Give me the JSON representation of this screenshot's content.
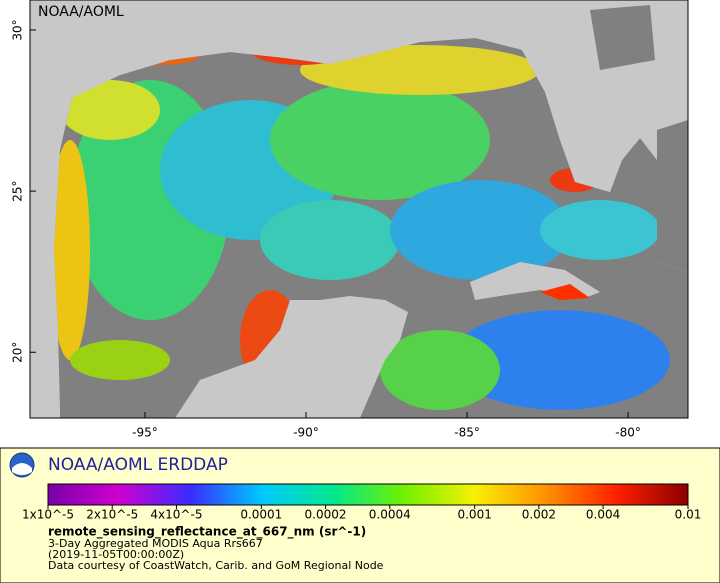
{
  "map": {
    "credit": "NOAA/AOML",
    "xlim": [
      -98.57,
      -78.14
    ],
    "ylim": [
      17.96,
      30.93
    ],
    "xticks": [
      {
        "value": -95,
        "label": "-95°"
      },
      {
        "value": -90,
        "label": "-90°"
      },
      {
        "value": -85,
        "label": "-85°"
      },
      {
        "value": -80,
        "label": "-80°"
      }
    ],
    "yticks": [
      {
        "value": 20,
        "label": "20°"
      },
      {
        "value": 25,
        "label": "25°"
      },
      {
        "value": 30,
        "label": "30°"
      }
    ]
  },
  "legend": {
    "title": "NOAA/AOML ERDDAP",
    "variable": "remote_sensing_reflectance_at_667_nm (sr^-1)",
    "lines": [
      "3-Day Aggregated MODIS Aqua Rrs667",
      "(2019-11-05T00:00:00Z)",
      "Data courtesy of CoastWatch, Carib. and GoM Regional Node"
    ],
    "colorbar": {
      "scale": "log",
      "lim": [
        1e-05,
        0.01
      ],
      "ticks": [
        {
          "value": 1e-05,
          "label": "1x10^-5"
        },
        {
          "value": 2e-05,
          "label": "2x10^-5"
        },
        {
          "value": 4e-05,
          "label": "4x10^-5"
        },
        0.0001,
        0.0002,
        0.0004,
        0.001,
        0.002,
        0.004,
        0.01
      ],
      "colors": [
        "#7a00a8",
        "#d000d0",
        "#3a2bff",
        "#00c8ff",
        "#00e890",
        "#70f000",
        "#f8f000",
        "#ff9000",
        "#ff2000",
        "#8a0000"
      ]
    }
  }
}
